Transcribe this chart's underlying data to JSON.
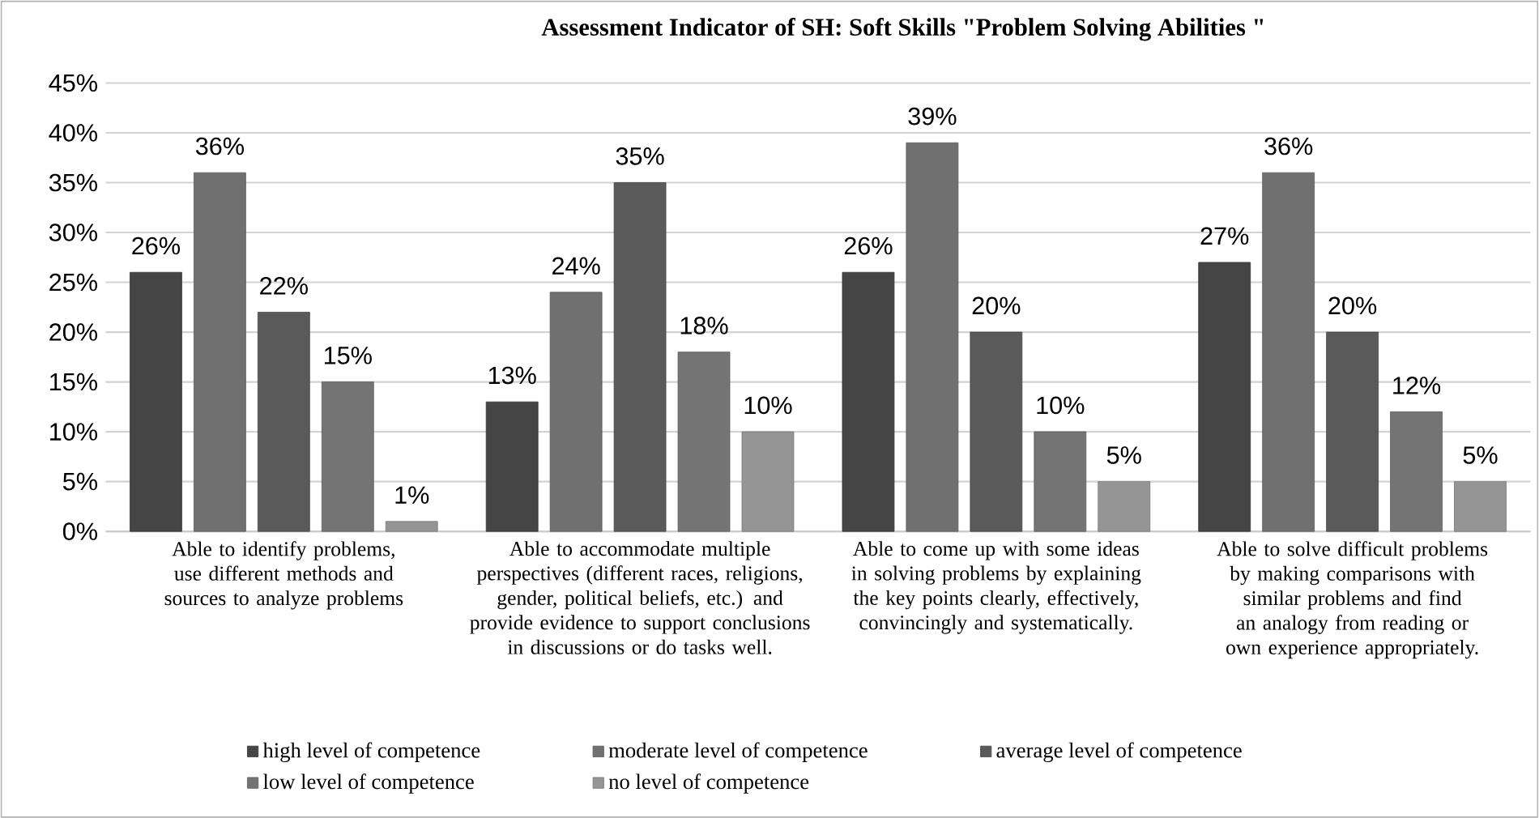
{
  "chart_data": {
    "type": "bar",
    "title": "Assessment Indicator of SH: Soft Skills \"Problem Solving Abilities \"",
    "categories": [
      "Able to identify problems, use different methods and sources to analyze problems",
      "Able to accommodate multiple perspectives (different races, religions, gender, political beliefs, etc.) and provide evidence to support conclusions in discussions or do tasks well.",
      "Able to come up with some ideas in solving problems by explaining the key points clearly, effectively, convincingly and systematically.",
      "Able to solve difficult problems by making comparisons with similar problems and find an analogy from reading or own experience appropriately."
    ],
    "series": [
      {
        "name": "high level of competence",
        "color": "#454545",
        "values": [
          26,
          13,
          26,
          27
        ],
        "value_labels": [
          "26%",
          "13%",
          "26%",
          "27%"
        ]
      },
      {
        "name": "moderate level of competence",
        "color": "#707070",
        "values": [
          36,
          24,
          39,
          36
        ],
        "value_labels": [
          "36%",
          "24%",
          "39%",
          "36%"
        ]
      },
      {
        "name": "average level of competence",
        "color": "#5a5a5a",
        "values": [
          22,
          35,
          20,
          20
        ],
        "value_labels": [
          "22%",
          "35%",
          "20%",
          "20%"
        ]
      },
      {
        "name": "low level of competence",
        "color": "#747474",
        "values": [
          15,
          18,
          10,
          12
        ],
        "value_labels": [
          "15%",
          "18%",
          "10%",
          "12%"
        ]
      },
      {
        "name": "no level of competence",
        "color": "#959595",
        "values": [
          1,
          10,
          5,
          5
        ],
        "value_labels": [
          "1%",
          "10%",
          "5%",
          "5%"
        ]
      }
    ],
    "ylim": [
      0,
      45
    ],
    "yticks": [
      {
        "value": 0,
        "label": "0%"
      },
      {
        "value": 5,
        "label": "5%"
      },
      {
        "value": 10,
        "label": "10%"
      },
      {
        "value": 15,
        "label": "15%"
      },
      {
        "value": 20,
        "label": "20%"
      },
      {
        "value": 25,
        "label": "25%"
      },
      {
        "value": 30,
        "label": "30%"
      },
      {
        "value": 35,
        "label": "35%"
      },
      {
        "value": 40,
        "label": "40%"
      },
      {
        "value": 45,
        "label": "45%"
      }
    ],
    "grid": "y",
    "legend": "bottom"
  }
}
